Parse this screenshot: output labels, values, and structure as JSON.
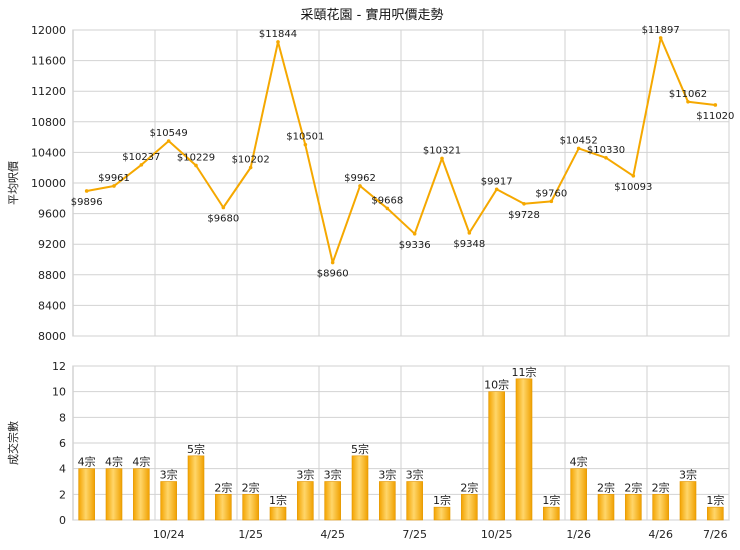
{
  "chart_data": [
    {
      "type": "line",
      "title": "采頤花園 - 實用呎價走勢",
      "ylabel": "平均呎價",
      "ylim": [
        8000,
        12000
      ],
      "yticks": [
        8000,
        8400,
        8800,
        9200,
        9600,
        10000,
        10400,
        10800,
        11200,
        11600,
        12000
      ],
      "x_tick_labels": [
        "10/24",
        "1/25",
        "4/25",
        "7/25",
        "10/25",
        "1/26",
        "4/26",
        "7/26"
      ],
      "grid": true,
      "series": [
        {
          "color": "#f5a800",
          "values": [
            9896,
            9961,
            10237,
            10549,
            10229,
            9680,
            10202,
            11844,
            10501,
            8960,
            9962,
            9668,
            9336,
            10321,
            9348,
            9917,
            9728,
            9760,
            10452,
            10330,
            10093,
            11897,
            11062,
            11020
          ],
          "labels": [
            "$9896",
            "$9961",
            "$10237",
            "$10549",
            "$10229",
            "$9680",
            "$10202",
            "$11844",
            "$10501",
            "$8960",
            "$9962",
            "$9668",
            "$9336",
            "$10321",
            "$9348",
            "$9917",
            "$9728",
            "$9760",
            "$10452",
            "$10330",
            "$10093",
            "$11897",
            "$11062",
            "$11020"
          ]
        }
      ]
    },
    {
      "type": "bar",
      "ylabel": "成交宗數",
      "ylim": [
        0,
        12
      ],
      "yticks": [
        0,
        2,
        4,
        6,
        8,
        10,
        12
      ],
      "x_tick_labels": [
        "10/24",
        "1/25",
        "4/25",
        "7/25",
        "10/25",
        "1/26",
        "4/26",
        "7/26"
      ],
      "grid": true,
      "series": [
        {
          "color": "#f5a800",
          "values": [
            4,
            4,
            4,
            3,
            5,
            2,
            2,
            1,
            3,
            3,
            5,
            3,
            3,
            1,
            2,
            10,
            11,
            1,
            4,
            2,
            2,
            2,
            3,
            1
          ],
          "labels": [
            "4宗",
            "4宗",
            "4宗",
            "3宗",
            "5宗",
            "2宗",
            "2宗",
            "1宗",
            "3宗",
            "3宗",
            "5宗",
            "3宗",
            "3宗",
            "1宗",
            "2宗",
            "10宗",
            "11宗",
            "1宗",
            "4宗",
            "2宗",
            "2宗",
            "2宗",
            "3宗",
            "1宗"
          ]
        }
      ]
    }
  ]
}
